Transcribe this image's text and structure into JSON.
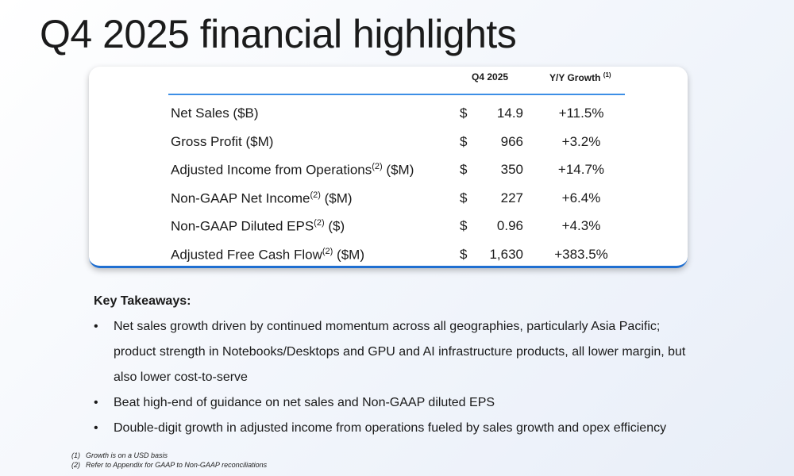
{
  "header": {
    "title": "Q4 2025 financial highlights"
  },
  "table": {
    "columns": {
      "period": "Q4 2025",
      "growth": "Y/Y Growth",
      "growth_note": "(1)"
    },
    "rows": [
      {
        "label": "Net Sales ($B)",
        "currency": "$",
        "value": "14.9",
        "growth": "+11.5%"
      },
      {
        "label": "Gross Profit ($M)",
        "currency": "$",
        "value": "966",
        "growth": "+3.2%"
      },
      {
        "label": "Adjusted Income from Operations",
        "note": "(2)",
        "unit": " ($M)",
        "currency": "$",
        "value": "350",
        "growth": "+14.7%"
      },
      {
        "label": "Non-GAAP Net Income",
        "note": "(2)",
        "unit": " ($M)",
        "currency": "$",
        "value": "227",
        "growth": "+6.4%"
      },
      {
        "label": "Non-GAAP Diluted EPS",
        "note": "(2)",
        "unit": " ($)",
        "currency": "$",
        "value": "0.96",
        "growth": "+4.3%"
      },
      {
        "label": "Adjusted Free Cash Flow",
        "note": "(2)",
        "unit": " ($M)",
        "currency": "$",
        "value": "1,630",
        "growth": "+383.5%"
      }
    ]
  },
  "takeaways": {
    "title": "Key Takeaways:",
    "bullets": [
      "Net sales growth driven by continued momentum across all geographies, particularly Asia Pacific; product strength in Notebooks/Desktops and GPU and AI infrastructure products, all lower margin, but also lower cost-to-serve",
      "Beat high-end of guidance on net sales and Non-GAAP diluted EPS",
      "Double-digit growth in adjusted income from operations fueled by sales growth and opex efficiency"
    ]
  },
  "footnotes": [
    {
      "marker": "(1)",
      "text": "Growth is on a USD basis"
    },
    {
      "marker": "(2)",
      "text": "Refer to Appendix for GAAP to Non-GAAP reconciliations"
    }
  ]
}
